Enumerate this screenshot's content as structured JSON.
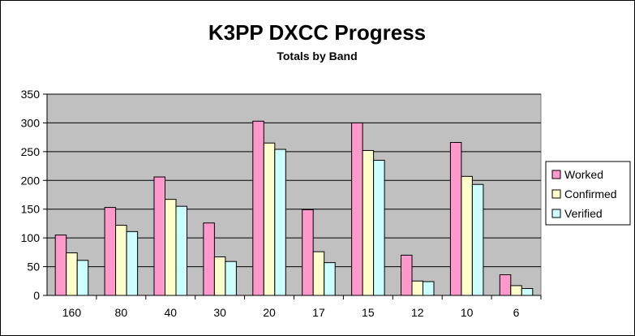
{
  "chart_data": {
    "type": "bar",
    "title": "K3PP DXCC Progress",
    "subtitle": "Totals by Band",
    "xlabel": "",
    "ylabel": "",
    "categories": [
      "160",
      "80",
      "40",
      "30",
      "20",
      "17",
      "15",
      "12",
      "10",
      "6"
    ],
    "series": [
      {
        "name": "Worked",
        "color": "#ff99cc",
        "values": [
          105,
          153,
          206,
          126,
          303,
          149,
          300,
          70,
          266,
          36
        ]
      },
      {
        "name": "Confirmed",
        "color": "#ffffcc",
        "values": [
          74,
          122,
          167,
          67,
          265,
          76,
          252,
          25,
          207,
          17
        ]
      },
      {
        "name": "Verified",
        "color": "#ccffff",
        "values": [
          61,
          111,
          155,
          59,
          254,
          57,
          235,
          24,
          193,
          12
        ]
      }
    ],
    "ylim": [
      0,
      350
    ],
    "yticks": [
      0,
      50,
      100,
      150,
      200,
      250,
      300,
      350
    ],
    "grid": true,
    "legend": "right",
    "plot_background": "#c0c0c0"
  }
}
